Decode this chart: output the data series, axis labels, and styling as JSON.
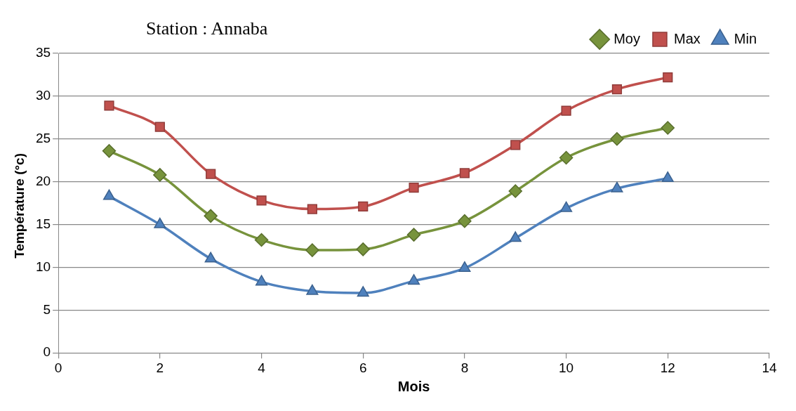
{
  "chart_data": {
    "type": "line",
    "title": "Station : Annaba",
    "xlabel": "Mois",
    "ylabel": "Température (°c)",
    "x": [
      1,
      2,
      3,
      4,
      5,
      6,
      7,
      8,
      9,
      10,
      11,
      12
    ],
    "series": [
      {
        "name": "Moy",
        "color": "#77933c",
        "marker": "diamond",
        "values": [
          23.6,
          20.8,
          16.0,
          13.2,
          12.0,
          12.1,
          13.8,
          15.4,
          18.9,
          22.8,
          25.0,
          26.3
        ]
      },
      {
        "name": "Max",
        "color": "#c0504d",
        "marker": "square",
        "values": [
          28.9,
          26.4,
          20.9,
          17.8,
          16.8,
          17.1,
          19.3,
          21.0,
          24.3,
          28.3,
          30.8,
          32.2
        ]
      },
      {
        "name": "Min",
        "color": "#4f81bd",
        "marker": "triangle",
        "values": [
          18.3,
          15.0,
          11.0,
          8.3,
          7.2,
          7.0,
          8.4,
          9.9,
          13.4,
          16.9,
          19.2,
          20.4
        ]
      }
    ],
    "xlim": [
      0,
      14
    ],
    "xticks": [
      0,
      2,
      4,
      6,
      8,
      10,
      12,
      14
    ],
    "ylim": [
      0,
      35
    ],
    "yticks": [
      0,
      5,
      10,
      15,
      20,
      25,
      30,
      35
    ],
    "grid": "y",
    "legend": "top right"
  }
}
